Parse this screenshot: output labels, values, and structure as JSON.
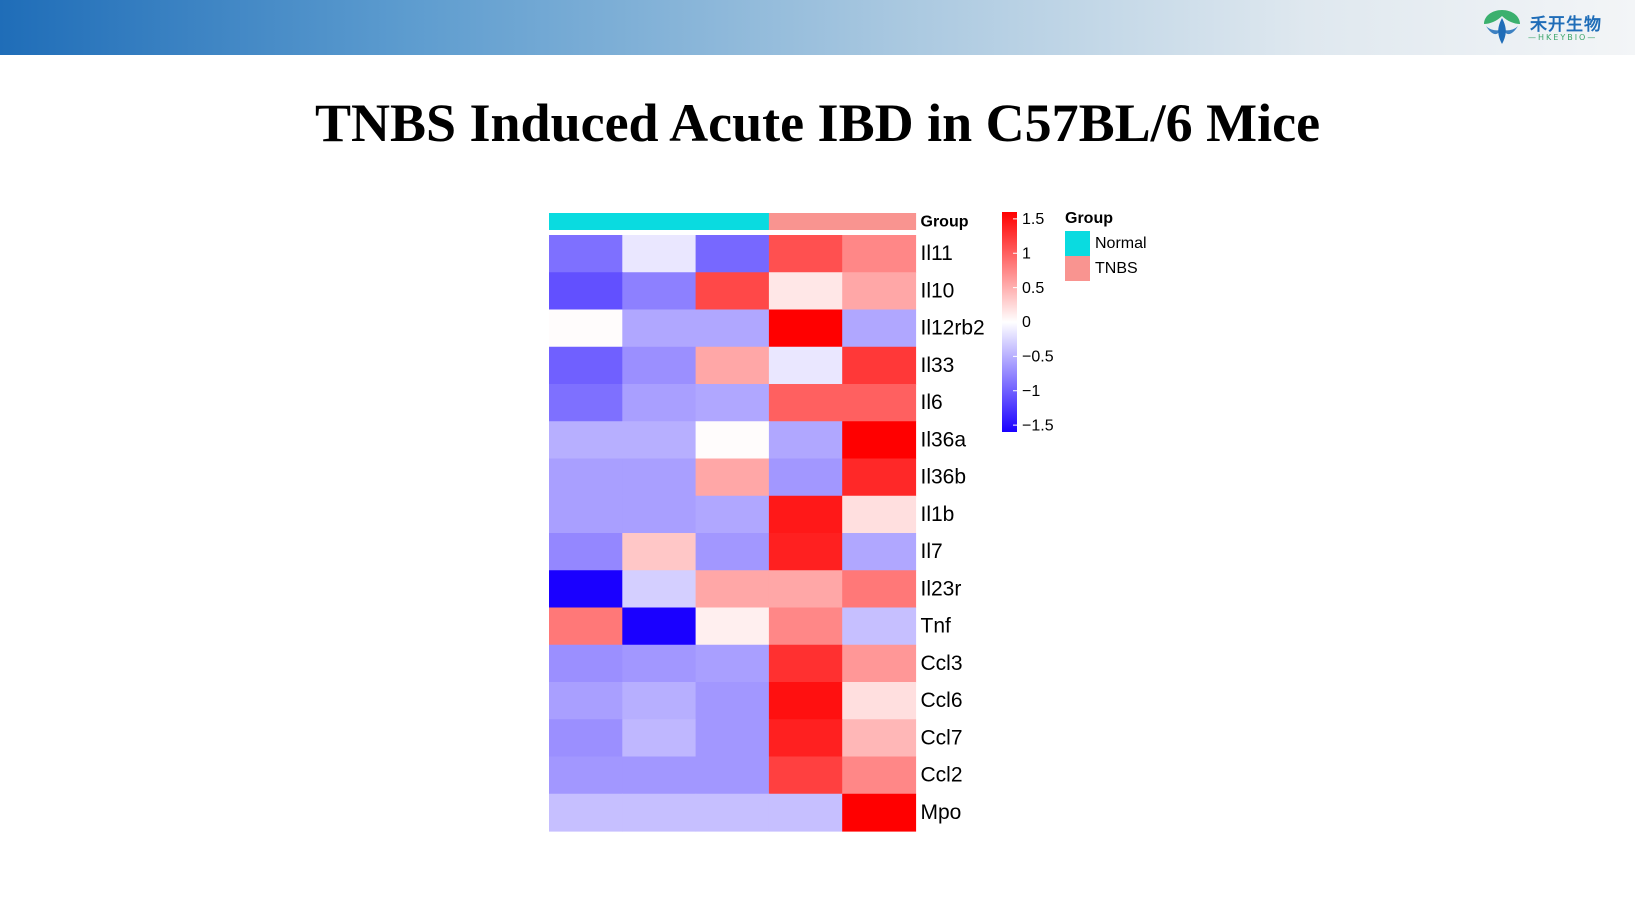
{
  "header": {
    "logo_text": "禾开生物",
    "logo_subtext": "HKEYBIO"
  },
  "title": "TNBS Induced Acute IBD in C57BL/6 Mice",
  "chart_data": {
    "type": "heatmap",
    "rows": [
      "Il11",
      "Il10",
      "Il12rb2",
      "Il33",
      "Il6",
      "Il36a",
      "Il36b",
      "Il1b",
      "Il7",
      "Il23r",
      "Tnf",
      "Ccl3",
      "Ccl6",
      "Ccl7",
      "Ccl2",
      "Mpo"
    ],
    "columns": [
      "",
      "",
      "",
      "",
      ""
    ],
    "column_groups": [
      "Normal",
      "Normal",
      "Normal",
      "TNBS",
      "TNBS"
    ],
    "values": [
      [
        -0.9,
        -0.15,
        -0.95,
        1.1,
        0.75
      ],
      [
        -1.1,
        -0.8,
        1.15,
        0.15,
        0.55
      ],
      [
        0.02,
        -0.55,
        -0.55,
        1.65,
        -0.55
      ],
      [
        -1.0,
        -0.7,
        0.55,
        -0.15,
        1.25
      ],
      [
        -0.9,
        -0.6,
        -0.55,
        1.0,
        1.0
      ],
      [
        -0.5,
        -0.5,
        0.02,
        -0.55,
        1.7
      ],
      [
        -0.6,
        -0.6,
        0.55,
        -0.65,
        1.35
      ],
      [
        -0.6,
        -0.6,
        -0.55,
        1.45,
        0.2
      ],
      [
        -0.75,
        0.35,
        -0.65,
        1.4,
        -0.55
      ],
      [
        -1.6,
        -0.3,
        0.55,
        0.55,
        0.85
      ],
      [
        0.85,
        -1.6,
        0.1,
        0.75,
        -0.4
      ],
      [
        -0.7,
        -0.65,
        -0.6,
        1.3,
        0.65
      ],
      [
        -0.6,
        -0.5,
        -0.65,
        1.5,
        0.2
      ],
      [
        -0.7,
        -0.45,
        -0.65,
        1.4,
        0.45
      ],
      [
        -0.65,
        -0.65,
        -0.65,
        1.2,
        0.75
      ],
      [
        -0.4,
        -0.4,
        -0.4,
        -0.4,
        1.7
      ]
    ],
    "group_annotation_label": "Group",
    "group_colors": {
      "Normal": "#0adbe0",
      "TNBS": "#f99490"
    },
    "color_scale": {
      "min": -1.6,
      "max": 1.6,
      "low": "#1a00ff",
      "mid": "#ffffff",
      "high": "#ff0000",
      "ticks": [
        1.5,
        1,
        0.5,
        0,
        -0.5,
        -1,
        -1.5
      ],
      "tick_labels": [
        "1.5",
        "1",
        "0.5",
        "0",
        "−0.5",
        "−1",
        "−1.5"
      ]
    },
    "legend": {
      "title": "Group",
      "entries": [
        "Normal",
        "TNBS"
      ]
    }
  }
}
